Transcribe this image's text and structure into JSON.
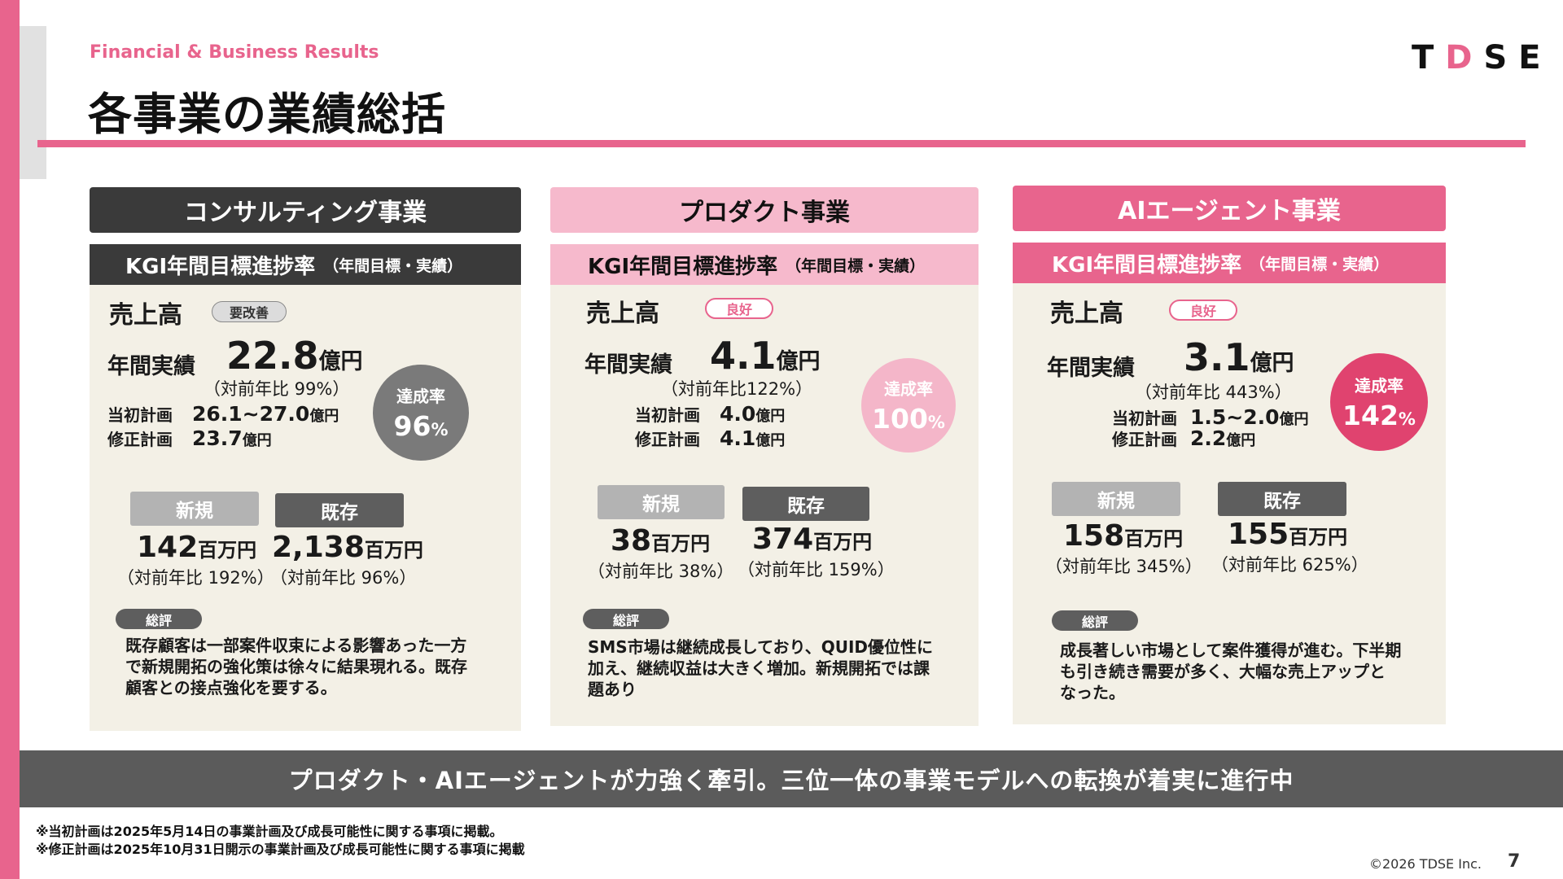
{
  "header": {
    "subtitle": "Financial & Business Results",
    "title": "各事業の業績総括",
    "logo_parts": [
      "T",
      "D",
      "SE"
    ]
  },
  "cards": [
    {
      "name": "コンサルティング事業",
      "kgi_title": "KGI年間目標進捗率",
      "kgi_note": "（年間目標・実績）",
      "sales_label": "売上高",
      "status": "要改善",
      "annual_label": "年間実績",
      "annual_value": "22.8",
      "annual_unit": "億円",
      "annual_yoy": "（対前年比 99%）",
      "initial_plan_label": "当初計画",
      "initial_plan_value": "26.1~27.0",
      "initial_plan_unit": "億円",
      "revised_plan_label": "修正計画",
      "revised_plan_value": "23.7",
      "revised_plan_unit": "億円",
      "achievement_label": "達成率",
      "achievement_value": "96",
      "achievement_unit": "%",
      "achievement_color": "#7a7a7a",
      "new_label": "新規",
      "new_value": "142",
      "new_unit": "百万円",
      "new_yoy": "（対前年比 192%）",
      "existing_label": "既存",
      "existing_value": "2,138",
      "existing_unit": "百万円",
      "existing_yoy": "（対前年比 96%）",
      "review_label": "総評",
      "review_lines": [
        "既存顧客は一部案件収束による影響あった一方",
        "で新規開拓の強化策は徐々に結果現れる。既存",
        "顧客との接点強化を要する。"
      ]
    },
    {
      "name": "プロダクト事業",
      "kgi_title": "KGI年間目標進捗率",
      "kgi_note": "（年間目標・実績）",
      "sales_label": "売上高",
      "status": "良好",
      "annual_label": "年間実績",
      "annual_value": "4.1",
      "annual_unit": "億円",
      "annual_yoy": "（対前年比122%）",
      "initial_plan_label": "当初計画",
      "initial_plan_value": "4.0",
      "initial_plan_unit": "億円",
      "revised_plan_label": "修正計画",
      "revised_plan_value": "4.1",
      "revised_plan_unit": "億円",
      "achievement_label": "達成率",
      "achievement_value": "100",
      "achievement_unit": "%",
      "achievement_color": "#f4b6c9",
      "new_label": "新規",
      "new_value": "38",
      "new_unit": "百万円",
      "new_yoy": "（対前年比 38%）",
      "existing_label": "既存",
      "existing_value": "374",
      "existing_unit": "百万円",
      "existing_yoy": "（対前年比 159%）",
      "review_label": "総評",
      "review_lines": [
        "SMS市場は継続成長しており、QUID優位性に",
        "加え、継続収益は大きく増加。新規開拓では課",
        "題あり"
      ]
    },
    {
      "name": "AIエージェント事業",
      "kgi_title": "KGI年間目標進捗率",
      "kgi_note": "（年間目標・実績）",
      "sales_label": "売上高",
      "status": "良好",
      "annual_label": "年間実績",
      "annual_value": "3.1",
      "annual_unit": "億円",
      "annual_yoy": "（対前年比 443%）",
      "initial_plan_label": "当初計画",
      "initial_plan_value": "1.5~2.0",
      "initial_plan_unit": "億円",
      "revised_plan_label": "修正計画",
      "revised_plan_value": "2.2",
      "revised_plan_unit": "億円",
      "achievement_label": "達成率",
      "achievement_value": "142",
      "achievement_unit": "%",
      "achievement_color": "#e0436f",
      "new_label": "新規",
      "new_value": "158",
      "new_unit": "百万円",
      "new_yoy": "（対前年比 345%）",
      "existing_label": "既存",
      "existing_value": "155",
      "existing_unit": "百万円",
      "existing_yoy": "（対前年比 625%）",
      "review_label": "総評",
      "review_lines": [
        "成長著しい市場として案件獲得が進む。下半期",
        "も引き続き需要が多く、大幅な売上アップと",
        "なった。"
      ]
    }
  ],
  "banner": "プロダクト・AIエージェントが力強く牽引。三位一体の事業モデルへの転換が着実に進行中",
  "footnotes": [
    "※当初計画は2025年5月14日の事業計画及び成長可能性に関する事項に掲載。",
    "※修正計画は2025年10月31日開示の事業計画及び成長可能性に関する事項に掲載"
  ],
  "copyright": "©2026 TDSE Inc.",
  "page_number": "7",
  "colors": {
    "accent": "#e8648d",
    "dark": "#3a3a3a",
    "light_pink": "#f6b9cc",
    "card_bg": "#f3f0e6"
  }
}
